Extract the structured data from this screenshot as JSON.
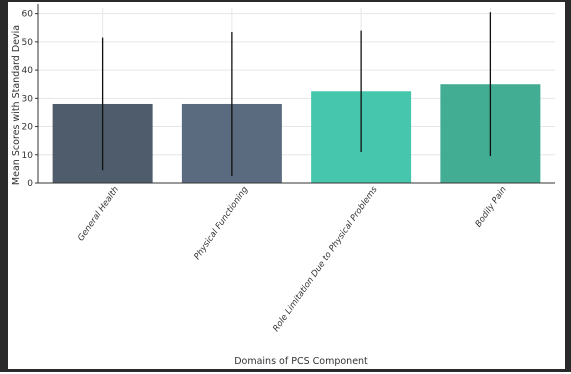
{
  "chart_data": {
    "type": "bar",
    "title": "",
    "xlabel": "Domains of PCS Component",
    "ylabel": "Mean Scores with Standard Devia",
    "categories": [
      "General Health",
      "Physical Functioning",
      "Role Limitation Due to Physical Problems",
      "Bodily Pain"
    ],
    "values": [
      28,
      28,
      32.5,
      35
    ],
    "error_low": [
      4.5,
      2.5,
      11,
      9.5
    ],
    "error_high": [
      51.5,
      53.5,
      54,
      60.5
    ],
    "ylim": [
      0,
      62
    ],
    "yticks": [
      0,
      10,
      20,
      30,
      40,
      50,
      60
    ],
    "grid": true,
    "legend": "none",
    "bar_colors": [
      "#4f5c6c",
      "#5a6a7f",
      "#46c7ad",
      "#43ad93"
    ],
    "error_bar_color": "#111111",
    "axis_color": "#333333"
  }
}
